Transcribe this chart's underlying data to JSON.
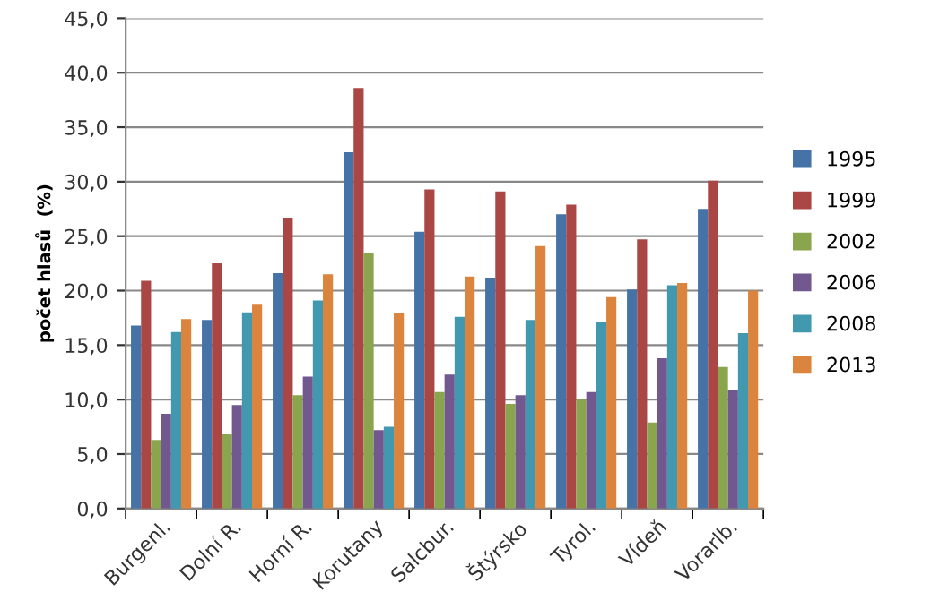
{
  "chart_data": {
    "type": "bar",
    "ylabel": "počet hlasů  (%)",
    "categories": [
      "Burgenl.",
      "Dolní R.",
      "Horní R.",
      "Korutany",
      "Salcbur.",
      "Štýrsko",
      "Tyrol.",
      "Vídeň",
      "Vorarlb."
    ],
    "series": [
      {
        "name": "1995",
        "color": "#4572a7",
        "values": [
          16.8,
          17.3,
          21.6,
          32.7,
          25.4,
          21.2,
          27.0,
          20.1,
          27.5
        ]
      },
      {
        "name": "1999",
        "color": "#aa4643",
        "values": [
          20.9,
          22.5,
          26.7,
          38.6,
          29.3,
          29.1,
          27.9,
          24.7,
          30.1
        ]
      },
      {
        "name": "2002",
        "color": "#89a54e",
        "values": [
          6.3,
          6.8,
          10.4,
          23.5,
          10.7,
          9.6,
          10.0,
          7.9,
          13.0
        ]
      },
      {
        "name": "2006",
        "color": "#71588f",
        "values": [
          8.7,
          9.5,
          12.1,
          7.2,
          12.3,
          10.4,
          10.7,
          13.8,
          10.9
        ]
      },
      {
        "name": "2008",
        "color": "#4198af",
        "values": [
          16.2,
          18.0,
          19.1,
          7.5,
          17.6,
          17.3,
          17.1,
          20.5,
          16.1
        ]
      },
      {
        "name": "2013",
        "color": "#db843d",
        "values": [
          17.4,
          18.7,
          21.5,
          17.9,
          21.3,
          24.1,
          19.4,
          20.7,
          20.0
        ]
      }
    ],
    "ylim": [
      0,
      45
    ],
    "yticks": [
      {
        "value": 0,
        "label": "0,0"
      },
      {
        "value": 5,
        "label": "5,0"
      },
      {
        "value": 10,
        "label": "10,0"
      },
      {
        "value": 15,
        "label": "15,0"
      },
      {
        "value": 20,
        "label": "20,0"
      },
      {
        "value": 25,
        "label": "25,0"
      },
      {
        "value": 30,
        "label": "30,0"
      },
      {
        "value": 35,
        "label": "35,0"
      },
      {
        "value": 40,
        "label": "40,0"
      },
      {
        "value": 45,
        "label": "45,0"
      }
    ],
    "grid": "y",
    "legend": "right"
  }
}
